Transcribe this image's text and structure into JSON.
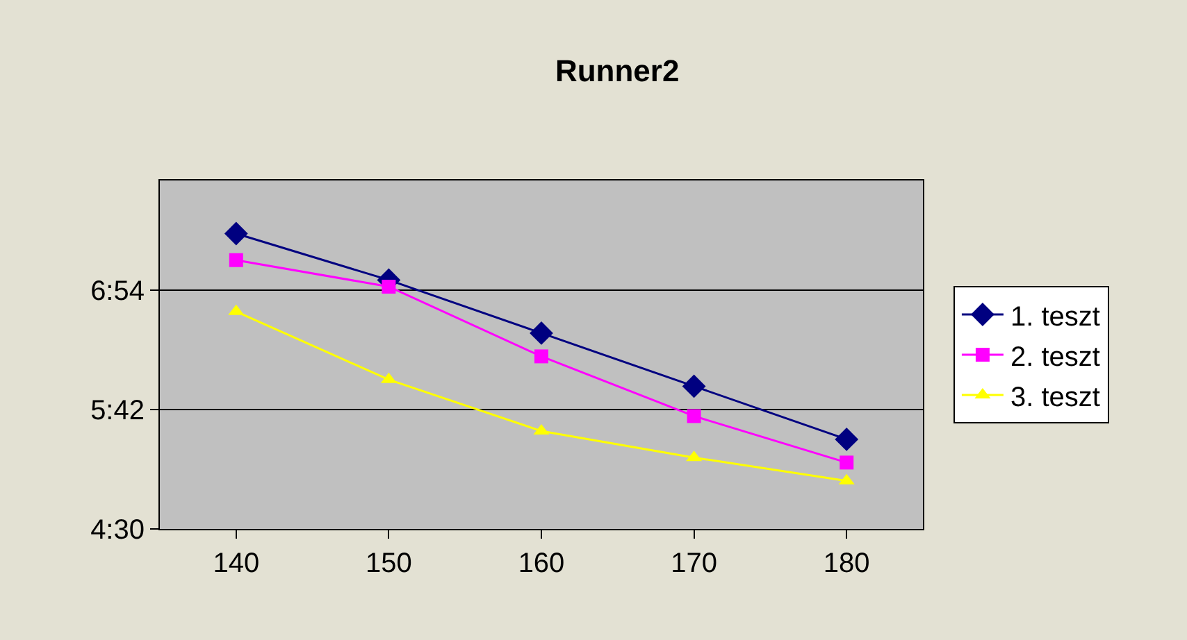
{
  "chart_data": {
    "type": "line",
    "title": "Runner2",
    "categories": [
      "140",
      "150",
      "160",
      "170",
      "180"
    ],
    "series": [
      {
        "name": "1. teszt",
        "color": "#000080",
        "marker": "diamond",
        "values": [
          448,
          420,
          388,
          356,
          324
        ]
      },
      {
        "name": "2. teszt",
        "color": "#ff00ff",
        "marker": "square",
        "values": [
          432,
          416,
          374,
          338,
          310
        ]
      },
      {
        "name": "3. teszt",
        "color": "#ffff00",
        "marker": "triangle",
        "values": [
          401,
          360,
          329,
          313,
          299
        ]
      }
    ],
    "ylim": [
      270,
      480
    ],
    "yticks": [
      {
        "value": 270,
        "label": "4:30"
      },
      {
        "value": 342,
        "label": "5:42"
      },
      {
        "value": 414,
        "label": "6:54"
      }
    ],
    "grid": "y",
    "legend": "right",
    "line_style": "solid"
  }
}
